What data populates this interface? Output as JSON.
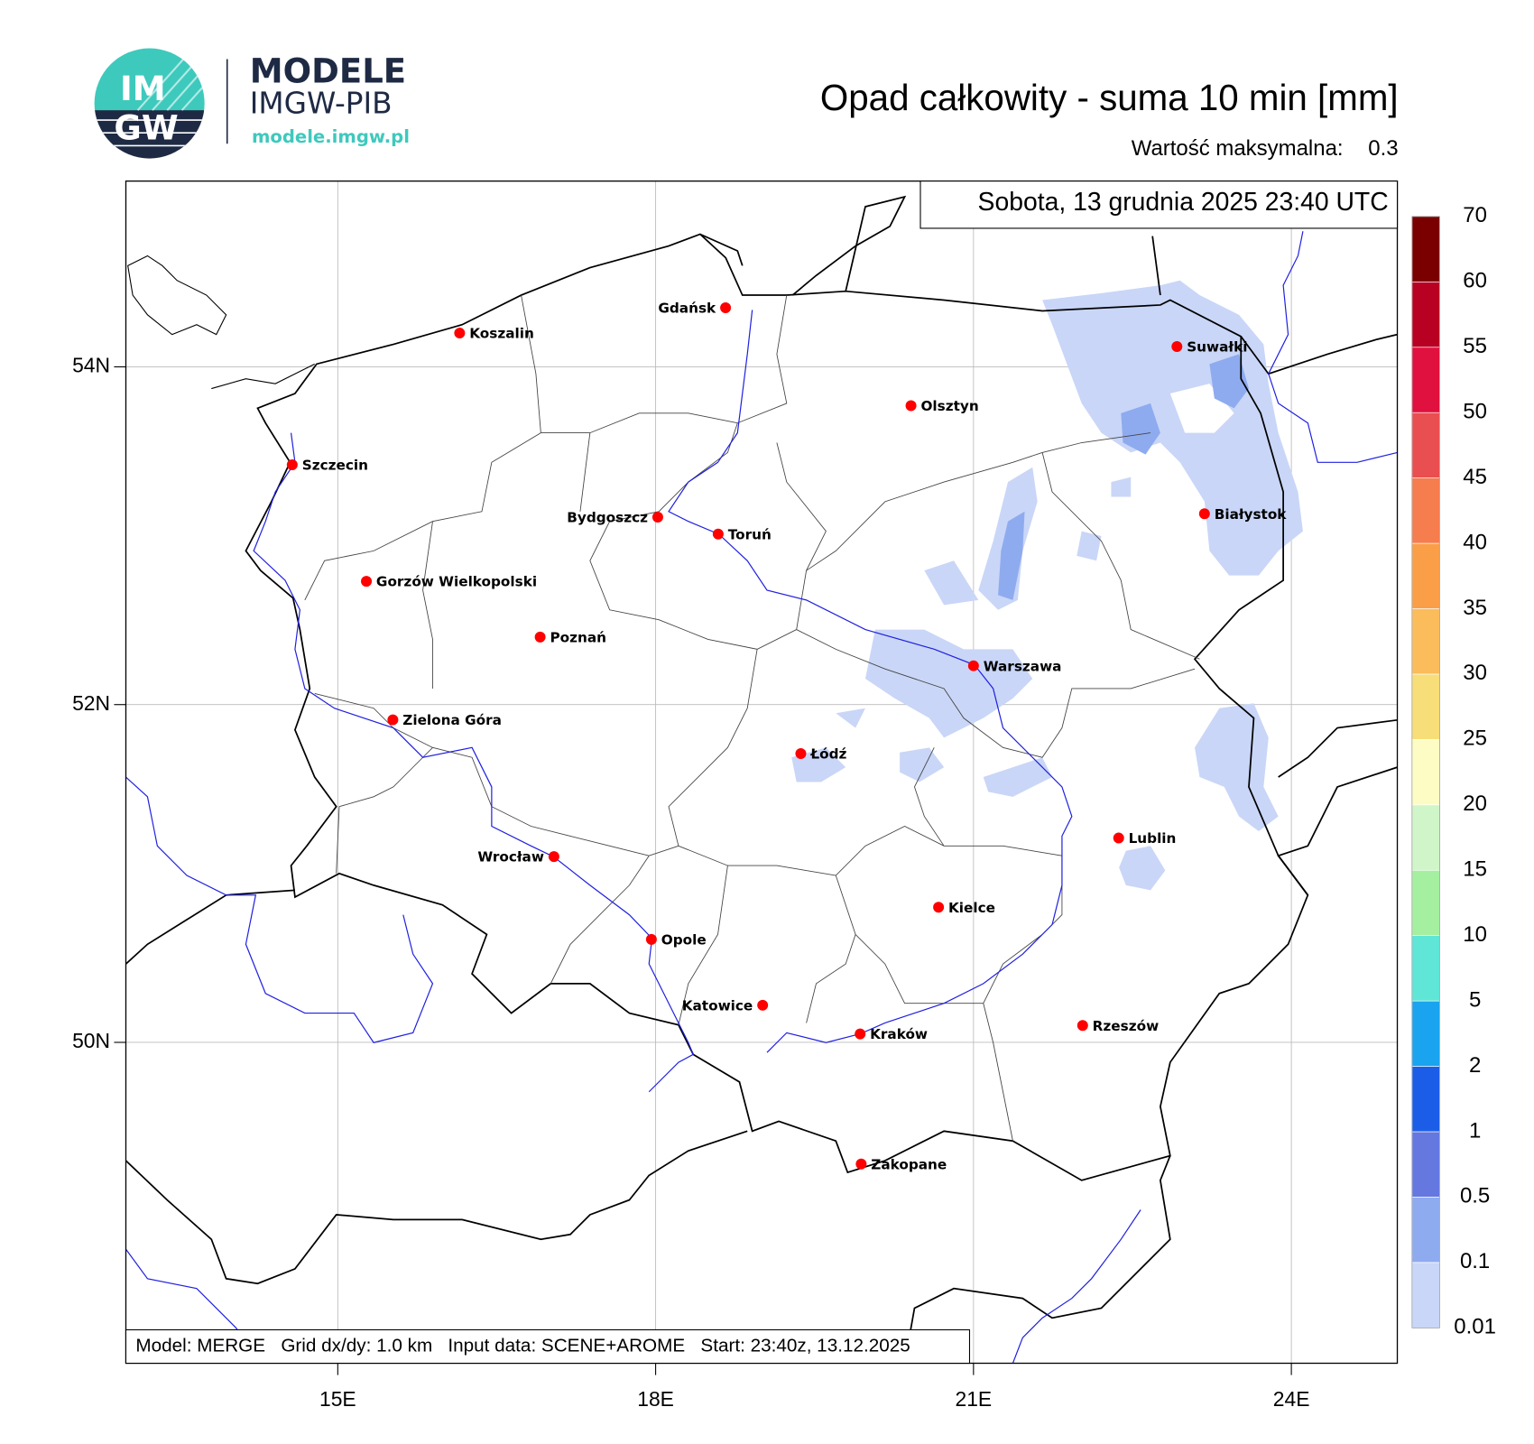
{
  "header": {
    "logo_top": "IM",
    "logo_bottom": "GW",
    "brand": "MODELE",
    "brand_sub": "IMGW-PIB",
    "url": "modele.imgw.pl",
    "title": "Opad całkowity - suma 10 min [mm]",
    "max_label": "Wartość maksymalna:",
    "max_value": 0.3
  },
  "map": {
    "date": "Sobota, 13 grudnia 2025 23:40 UTC",
    "xlim": [
      13.0,
      25.0
    ],
    "ylim": [
      48.1,
      55.1
    ],
    "xticks": [
      {
        "value": 15,
        "label": "15E"
      },
      {
        "value": 18,
        "label": "18E"
      },
      {
        "value": 21,
        "label": "21E"
      },
      {
        "value": 24,
        "label": "24E"
      }
    ],
    "yticks": [
      {
        "value": 50,
        "label": "50N"
      },
      {
        "value": 52,
        "label": "52N"
      },
      {
        "value": 54,
        "label": "54N"
      }
    ],
    "grid": true,
    "cities": [
      {
        "name": "Gdańsk",
        "lon": 18.66,
        "lat": 54.35
      },
      {
        "name": "Koszalin",
        "lon": 16.15,
        "lat": 54.2
      },
      {
        "name": "Szczecin",
        "lon": 14.57,
        "lat": 53.42
      },
      {
        "name": "Suwałki",
        "lon": 22.92,
        "lat": 54.12
      },
      {
        "name": "Olsztyn",
        "lon": 20.41,
        "lat": 53.77
      },
      {
        "name": "Białystok",
        "lon": 23.18,
        "lat": 53.13
      },
      {
        "name": "Bydgoszcz",
        "lon": 18.02,
        "lat": 53.11
      },
      {
        "name": "Toruń",
        "lon": 18.59,
        "lat": 53.01
      },
      {
        "name": "Gorzów Wielkopolski",
        "lon": 15.27,
        "lat": 52.73
      },
      {
        "name": "Poznań",
        "lon": 16.91,
        "lat": 52.4
      },
      {
        "name": "Warszawa",
        "lon": 21.0,
        "lat": 52.23
      },
      {
        "name": "Zielona Góra",
        "lon": 15.52,
        "lat": 51.91
      },
      {
        "name": "Łódź",
        "lon": 19.37,
        "lat": 51.71
      },
      {
        "name": "Lublin",
        "lon": 22.37,
        "lat": 51.21
      },
      {
        "name": "Wrocław",
        "lon": 17.04,
        "lat": 51.1
      },
      {
        "name": "Kielce",
        "lon": 20.67,
        "lat": 50.8
      },
      {
        "name": "Opole",
        "lon": 17.96,
        "lat": 50.61
      },
      {
        "name": "Katowice",
        "lon": 19.01,
        "lat": 50.22
      },
      {
        "name": "Rzeszów",
        "lon": 22.03,
        "lat": 50.1
      },
      {
        "name": "Kraków",
        "lon": 19.93,
        "lat": 50.05
      },
      {
        "name": "Zakopane",
        "lon": 19.94,
        "lat": 49.28
      }
    ],
    "footer": "Model: MERGE   Grid dx/dy: 1.0 km   Input data: SCENE+AROME   Start: 23:40z, 13.12.2025"
  },
  "colorbar": {
    "levels": [
      0.01,
      0.1,
      0.5,
      1,
      2,
      5,
      10,
      15,
      20,
      25,
      30,
      35,
      40,
      45,
      50,
      55,
      60,
      70
    ],
    "colors": [
      "#c9d6f7",
      "#8fabef",
      "#6478e0",
      "#1c5de8",
      "#1aa3ee",
      "#5fe6d6",
      "#a4f0a0",
      "#d0f5c8",
      "#fcfcc4",
      "#f8de78",
      "#fbbc5c",
      "#fb9e48",
      "#f57d4e",
      "#e94f50",
      "#e0103f",
      "#b80022",
      "#7a0000"
    ]
  }
}
